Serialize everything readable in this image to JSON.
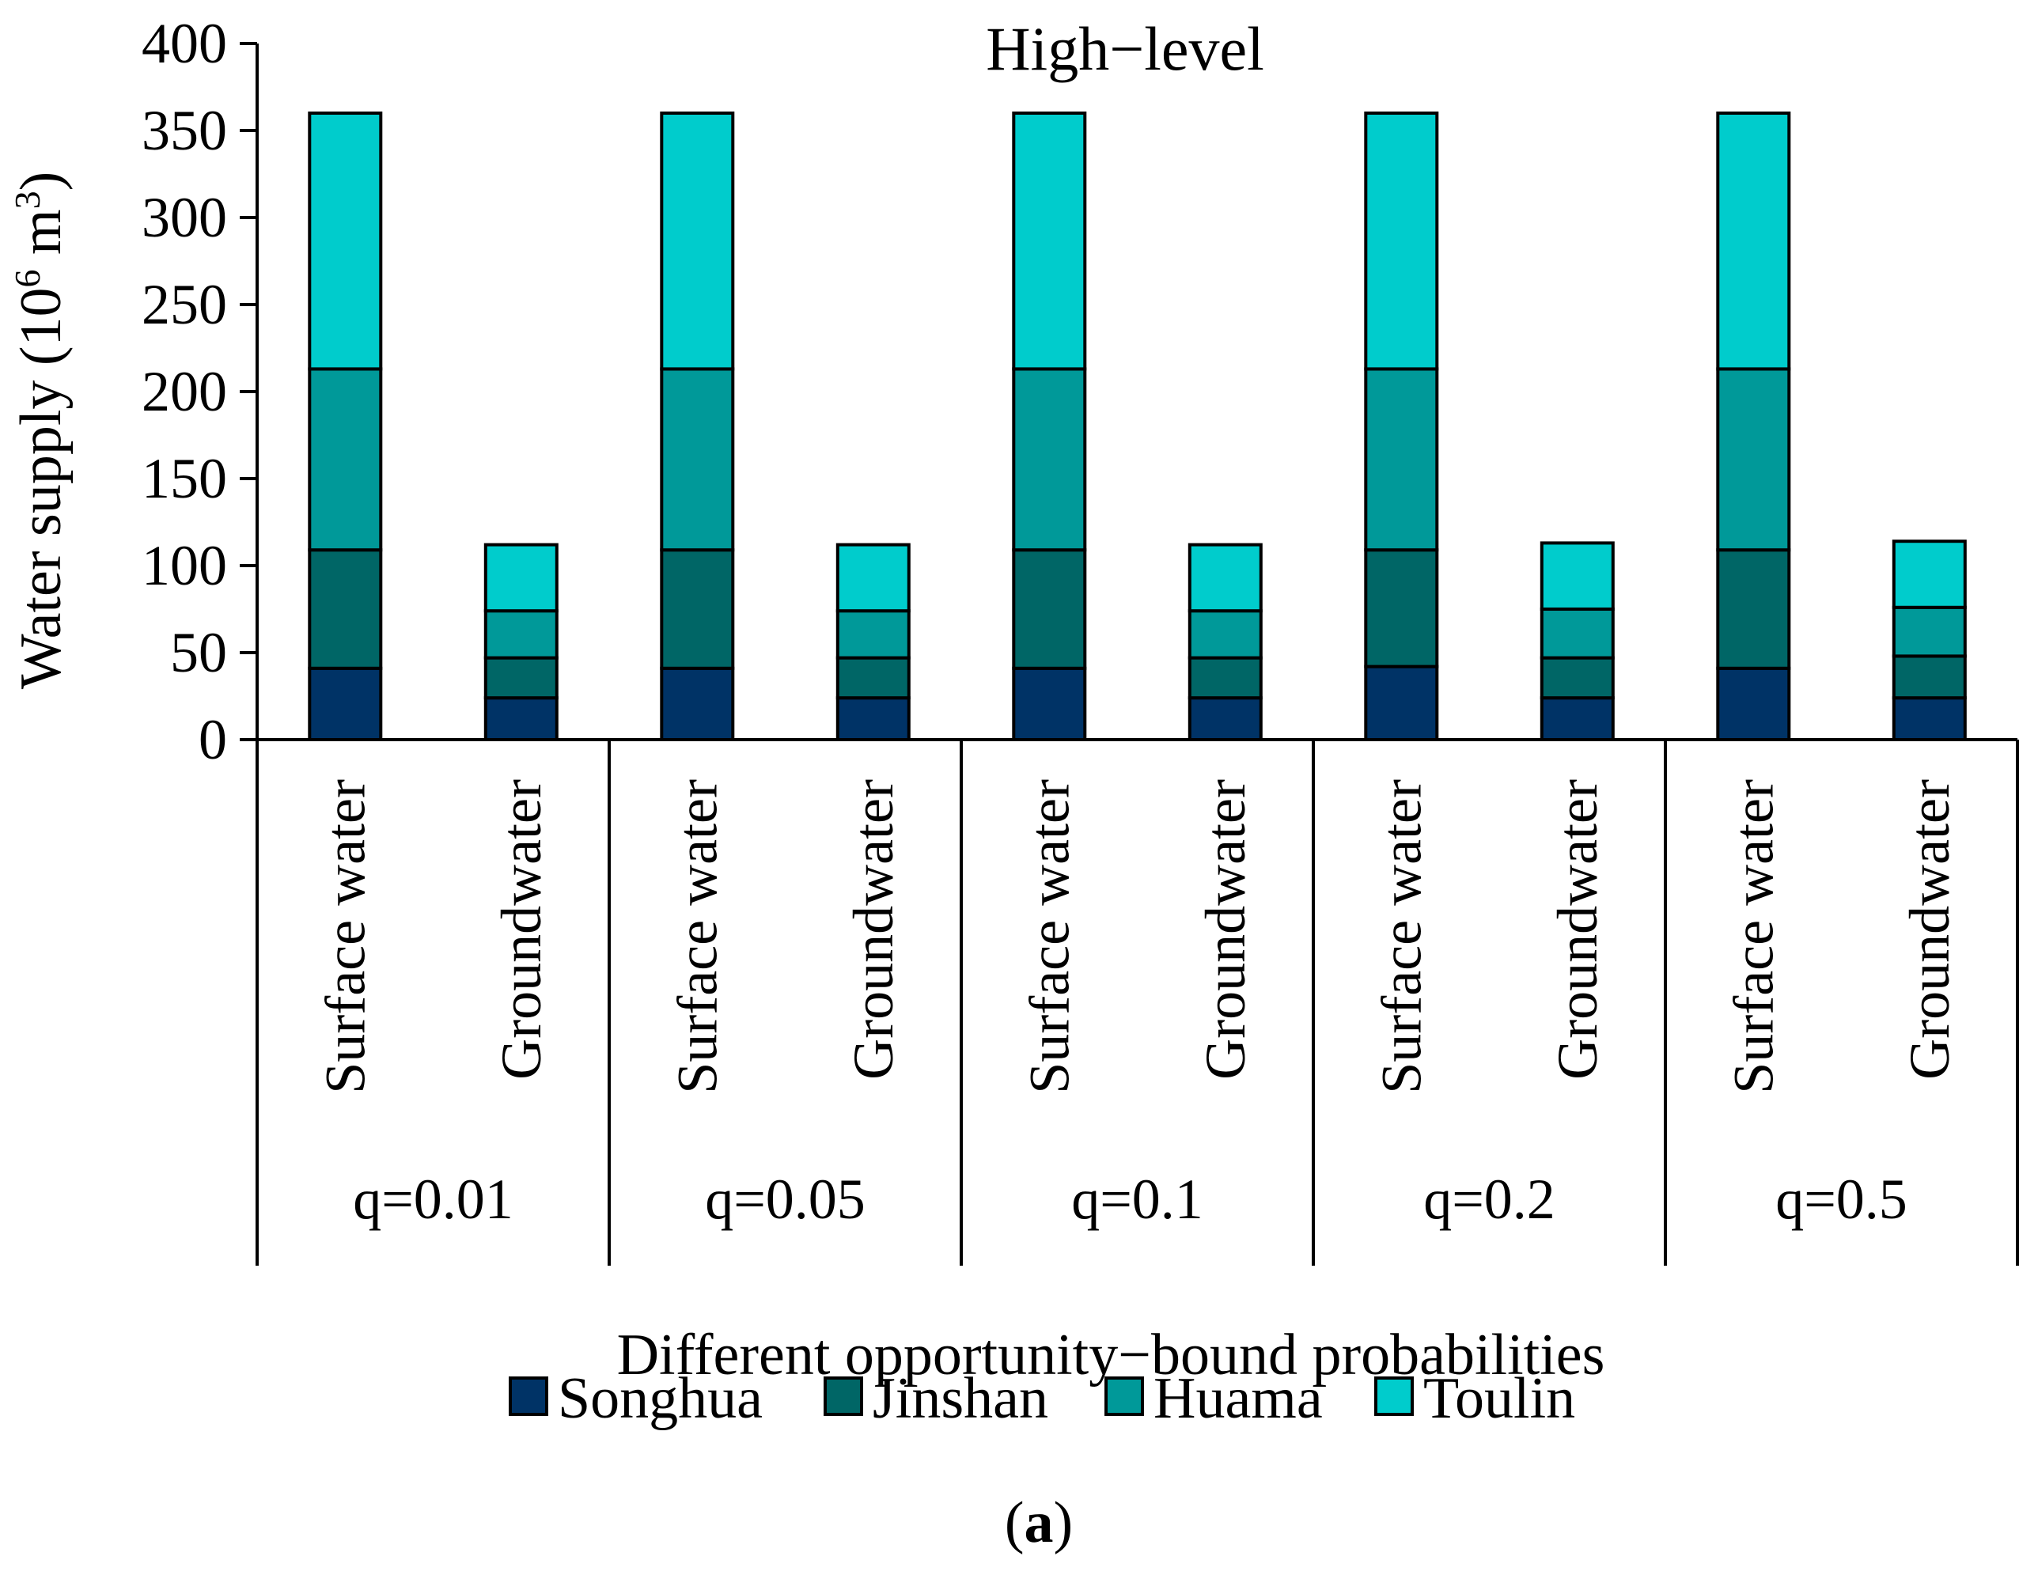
{
  "chart_data": {
    "type": "bar",
    "stacked": true,
    "title": "High−level",
    "ylabel": {
      "main": "Water supply (10",
      "sup1": "6",
      "mid": " m",
      "sup2": "3",
      "end": ")"
    },
    "xlabel": "Different opportunity−bound probabilities",
    "caption": {
      "open": "(",
      "bold": "a",
      "close": ")"
    },
    "ylim": [
      0,
      400
    ],
    "yticks": [
      0,
      50,
      100,
      150,
      200,
      250,
      300,
      350,
      400
    ],
    "groups": [
      "q=0.01",
      "q=0.05",
      "q=0.1",
      "q=0.2",
      "q=0.5"
    ],
    "categories": [
      "Surface water",
      "Groundwater"
    ],
    "series": [
      {
        "name": "Songhua",
        "color": "#003366",
        "values": [
          [
            41,
            24
          ],
          [
            41,
            24
          ],
          [
            41,
            24
          ],
          [
            42,
            24
          ],
          [
            41,
            24
          ]
        ]
      },
      {
        "name": "Jinshan",
        "color": "#006666",
        "values": [
          [
            68,
            23
          ],
          [
            68,
            23
          ],
          [
            68,
            23
          ],
          [
            67,
            23
          ],
          [
            68,
            24
          ]
        ]
      },
      {
        "name": "Huama",
        "color": "#009999",
        "values": [
          [
            104,
            27
          ],
          [
            104,
            27
          ],
          [
            104,
            27
          ],
          [
            104,
            28
          ],
          [
            104,
            28
          ]
        ]
      },
      {
        "name": "Toulin",
        "color": "#00CCCC",
        "values": [
          [
            147,
            38
          ],
          [
            147,
            38
          ],
          [
            147,
            38
          ],
          [
            147,
            38
          ],
          [
            147,
            38
          ]
        ]
      }
    ]
  }
}
